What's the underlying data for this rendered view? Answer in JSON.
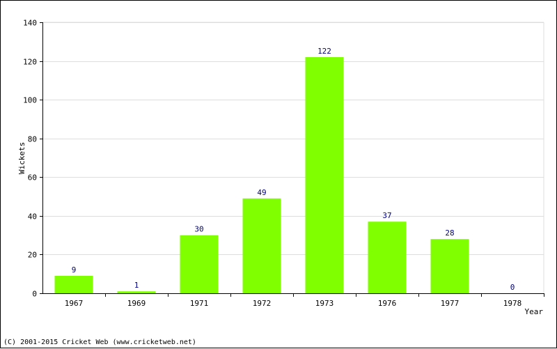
{
  "chart_data": {
    "type": "bar",
    "categories": [
      "1967",
      "1969",
      "1971",
      "1972",
      "1973",
      "1976",
      "1977",
      "1978"
    ],
    "values": [
      9,
      1,
      30,
      49,
      122,
      37,
      28,
      0
    ],
    "title": "",
    "xlabel": "Year",
    "ylabel": "Wickets",
    "ylim": [
      0,
      140
    ],
    "yticks": [
      0,
      20,
      40,
      60,
      80,
      100,
      120,
      140
    ],
    "grid": true,
    "legend": "none"
  },
  "colors": {
    "bar": "#80ff00",
    "value_label": "#000080",
    "grid": "#dddddd",
    "axis": "#000000",
    "text": "#000000"
  },
  "footer": {
    "copyright": "(C) 2001-2015 Cricket Web (www.cricketweb.net)"
  }
}
